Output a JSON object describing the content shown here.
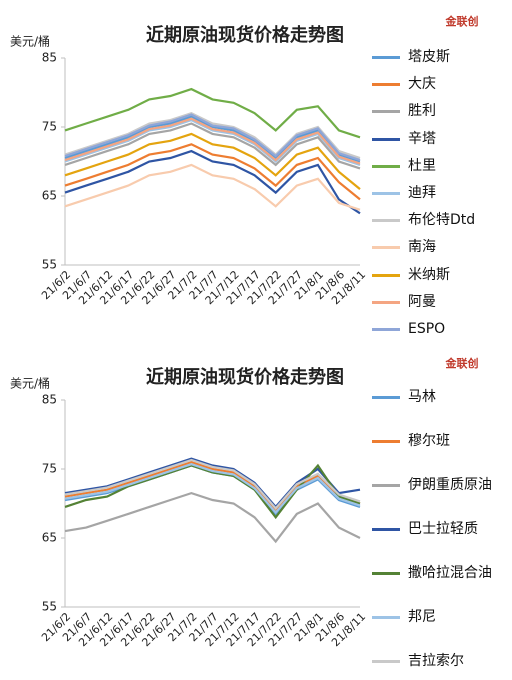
{
  "chart_data": [
    {
      "type": "line",
      "title": "近期原油现货价格走势图",
      "y_label": "美元/桶",
      "logo": "金联创",
      "categories": [
        "21/6/2",
        "21/6/7",
        "21/6/12",
        "21/6/17",
        "21/6/22",
        "21/6/27",
        "21/7/2",
        "21/7/7",
        "21/7/12",
        "21/7/17",
        "21/7/22",
        "21/7/27",
        "21/8/1",
        "21/8/6",
        "21/8/11"
      ],
      "ylim": [
        55,
        85
      ],
      "yticks": [
        55,
        65,
        75,
        85
      ],
      "series": [
        {
          "name": "塔皮斯",
          "color": "#5b9bd5",
          "values": [
            70.5,
            71.5,
            72.5,
            73.5,
            75,
            75.5,
            76.5,
            75,
            74.5,
            73,
            70.5,
            73.5,
            74.5,
            71,
            70
          ]
        },
        {
          "name": "大庆",
          "color": "#ed7d31",
          "values": [
            66.5,
            67.5,
            68.5,
            69.5,
            71,
            71.5,
            72.5,
            71,
            70.5,
            69,
            66.5,
            69.5,
            70.5,
            67,
            64.5
          ]
        },
        {
          "name": "胜利",
          "color": "#a5a5a5",
          "values": [
            69.5,
            70.5,
            71.5,
            72.5,
            74,
            74.5,
            75.5,
            74,
            73.5,
            72,
            69.5,
            72.5,
            73.5,
            70,
            69
          ]
        },
        {
          "name": "辛塔",
          "color": "#2f55a4",
          "values": [
            65.5,
            66.5,
            67.5,
            68.5,
            70,
            70.5,
            71.5,
            70,
            69.5,
            68,
            65.5,
            68.5,
            69.5,
            64.5,
            62.5
          ]
        },
        {
          "name": "杜里",
          "color": "#70ad47",
          "values": [
            74.5,
            75.5,
            76.5,
            77.5,
            79,
            79.5,
            80.5,
            79,
            78.5,
            77,
            74.5,
            77.5,
            78,
            74.5,
            73.5
          ]
        },
        {
          "name": "迪拜",
          "color": "#9dc3e6",
          "values": [
            70,
            71,
            72,
            73,
            74.5,
            75,
            76,
            74.5,
            74,
            72.5,
            70,
            73,
            74,
            70.5,
            69.5
          ]
        },
        {
          "name": "布伦特Dtd",
          "color": "#c9c9c9",
          "values": [
            71,
            72,
            73,
            74,
            75.5,
            76,
            77,
            75.5,
            75,
            73.5,
            71,
            74,
            75,
            71.5,
            70.5
          ]
        },
        {
          "name": "南海",
          "color": "#f8cbad",
          "values": [
            63.5,
            64.5,
            65.5,
            66.5,
            68,
            68.5,
            69.5,
            68,
            67.5,
            66,
            63.5,
            66.5,
            67.5,
            64,
            63
          ]
        },
        {
          "name": "米纳斯",
          "color": "#e4a40f",
          "values": [
            68,
            69,
            70,
            71,
            72.5,
            73,
            74,
            72.5,
            72,
            70.5,
            68,
            71,
            72,
            68.5,
            66
          ]
        },
        {
          "name": "阿曼",
          "color": "#f4a582",
          "values": [
            70.2,
            71.2,
            72.2,
            73.2,
            74.7,
            75.2,
            76.2,
            74.7,
            74.2,
            72.7,
            70.2,
            73.2,
            74.2,
            70.7,
            69.7
          ]
        },
        {
          "name": "ESPO",
          "color": "#8fa6d8",
          "values": [
            70.8,
            71.8,
            72.8,
            73.8,
            75.2,
            75.8,
            76.8,
            75.2,
            74.8,
            73.2,
            70.8,
            73.8,
            74.8,
            71.2,
            70.2
          ]
        }
      ]
    },
    {
      "type": "line",
      "title": "近期原油现货价格走势图",
      "y_label": "美元/桶",
      "logo": "金联创",
      "categories": [
        "21/6/2",
        "21/6/7",
        "21/6/12",
        "21/6/17",
        "21/6/22",
        "21/6/27",
        "21/7/2",
        "21/7/7",
        "21/7/12",
        "21/7/17",
        "21/7/22",
        "21/7/27",
        "21/8/1",
        "21/8/6",
        "21/8/11"
      ],
      "ylim": [
        55,
        85
      ],
      "yticks": [
        55,
        65,
        75,
        85
      ],
      "series": [
        {
          "name": "马林",
          "color": "#5b9bd5",
          "values": [
            70.5,
            71,
            71.5,
            72.5,
            73.5,
            74.5,
            75.5,
            74.5,
            74,
            72,
            68.5,
            72,
            73.5,
            70.5,
            69.5
          ]
        },
        {
          "name": "穆尔班",
          "color": "#ed7d31",
          "values": [
            71,
            71.5,
            72,
            73,
            74,
            75,
            76,
            75,
            74.5,
            72.5,
            69,
            72.5,
            74,
            71,
            70
          ]
        },
        {
          "name": "伊朗重质原油",
          "color": "#a5a5a5",
          "values": [
            66,
            66.5,
            67.5,
            68.5,
            69.5,
            70.5,
            71.5,
            70.5,
            70,
            68,
            64.5,
            68.5,
            70,
            66.5,
            65
          ]
        },
        {
          "name": "巴士拉轻质",
          "color": "#2f55a4",
          "values": [
            71.5,
            72,
            72.5,
            73.5,
            74.5,
            75.5,
            76.5,
            75.5,
            75,
            73,
            69.5,
            73,
            75,
            71.5,
            72
          ]
        },
        {
          "name": "撒哈拉混合油",
          "color": "#548235",
          "values": [
            69.5,
            70.5,
            71,
            72.5,
            73.5,
            74.5,
            75.5,
            74.5,
            74,
            72,
            68,
            72,
            75.5,
            71,
            70
          ]
        },
        {
          "name": "邦尼",
          "color": "#9dc3e6",
          "values": [
            70.7,
            71.2,
            71.7,
            72.7,
            73.7,
            74.7,
            75.7,
            74.7,
            74.2,
            72.2,
            68.7,
            72.2,
            73.7,
            70.7,
            69.7
          ]
        },
        {
          "name": "吉拉索尔",
          "color": "#c9c9c9",
          "values": [
            71.3,
            71.8,
            72.3,
            73.3,
            74.3,
            75.3,
            76.3,
            75.3,
            74.8,
            72.8,
            69.3,
            72.8,
            74.3,
            71.3,
            70.3
          ]
        }
      ]
    }
  ]
}
